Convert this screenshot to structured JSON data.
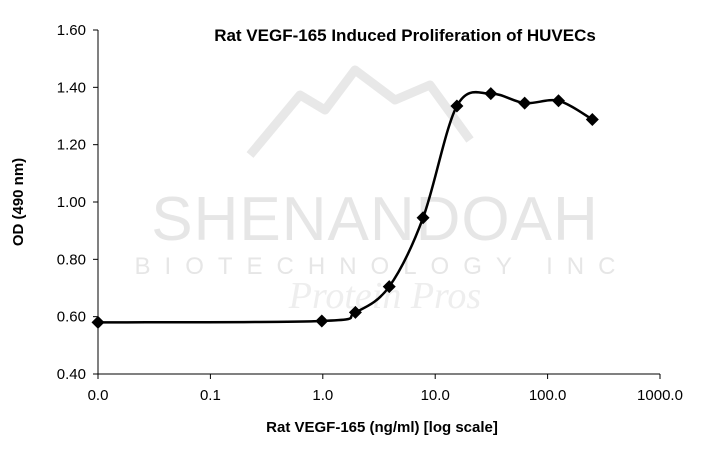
{
  "chart_data": {
    "type": "line",
    "title": "Rat VEGF-165 Induced Proliferation of HUVECs",
    "xlabel": "Rat VEGF-165 (ng/ml) [log scale]",
    "ylabel": "OD (490 nm)",
    "x_scale": "log",
    "x_origin_label": "0.0",
    "x_ticks": [
      0.1,
      1,
      10,
      100,
      1000
    ],
    "x_tick_labels": [
      "0.0",
      "0.1",
      "1.0",
      "10.0",
      "100.0",
      "1000.0"
    ],
    "xlim": [
      0.01,
      1000
    ],
    "ylim": [
      0.4,
      1.6
    ],
    "y_ticks": [
      0.4,
      0.6,
      0.8,
      1.0,
      1.2,
      1.4,
      1.6
    ],
    "y_tick_labels": [
      "0.40",
      "0.60",
      "0.80",
      "1.00",
      "1.20",
      "1.40",
      "1.60"
    ],
    "grid": false,
    "series": [
      {
        "marker": "diamond",
        "color": "#000000",
        "x": [
          0,
          0.98,
          1.95,
          3.9,
          7.8,
          15.6,
          31.25,
          62.5,
          125,
          250
        ],
        "y": [
          0.58,
          0.585,
          0.615,
          0.705,
          0.945,
          1.335,
          1.378,
          1.345,
          1.353,
          1.288
        ]
      }
    ]
  },
  "watermark": {
    "line1": "SHENANDOAH",
    "line2": "BIOTECHNOLOGY INC",
    "line3": "Protein Pros"
  }
}
